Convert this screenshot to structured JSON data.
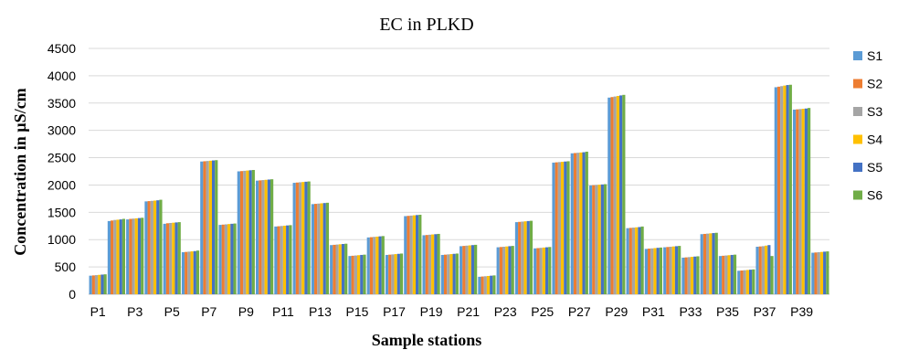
{
  "chart_data": {
    "type": "bar",
    "title": "EC in PLKD",
    "xlabel": "Sample stations",
    "ylabel": "Concentration in µS/cm",
    "ylim": [
      0,
      4500
    ],
    "ytick_step": 500,
    "grid": true,
    "legend_position": "right",
    "categories": [
      "P1",
      "P2",
      "P3",
      "P4",
      "P5",
      "P6",
      "P7",
      "P8",
      "P9",
      "P10",
      "P11",
      "P12",
      "P13",
      "P14",
      "P15",
      "P16",
      "P17",
      "P18",
      "P19",
      "P20",
      "P21",
      "P22",
      "P23",
      "P24",
      "P25",
      "P26",
      "P27",
      "P28",
      "P29",
      "P30",
      "P31",
      "P32",
      "P33",
      "P34",
      "P35",
      "P36",
      "P37",
      "P38",
      "P39",
      "P40"
    ],
    "visible_tick_labels": [
      "P1",
      "P3",
      "P5",
      "P7",
      "P9",
      "P11",
      "P13",
      "P15",
      "P17",
      "P19",
      "P21",
      "P23",
      "P25",
      "P27",
      "P29",
      "P31",
      "P33",
      "P35",
      "P37",
      "P39"
    ],
    "series": [
      {
        "name": "S1",
        "color": "#5b9bd5",
        "values": [
          340,
          1340,
          1370,
          1700,
          1290,
          770,
          2430,
          1270,
          2250,
          2080,
          1240,
          2040,
          1650,
          900,
          700,
          1040,
          720,
          1430,
          1080,
          720,
          880,
          320,
          860,
          1320,
          840,
          2410,
          2580,
          1990,
          3600,
          1210,
          830,
          860,
          670,
          1100,
          700,
          430,
          870,
          3790,
          3380,
          760
        ]
      },
      {
        "name": "S2",
        "color": "#ed7d31",
        "values": [
          345,
          1350,
          1380,
          1705,
          1300,
          775,
          2435,
          1275,
          2255,
          2085,
          1245,
          2045,
          1655,
          905,
          705,
          1045,
          725,
          1435,
          1085,
          725,
          885,
          325,
          865,
          1325,
          845,
          2415,
          2585,
          1995,
          3610,
          1215,
          835,
          865,
          675,
          1105,
          705,
          435,
          875,
          3800,
          3385,
          765
        ]
      },
      {
        "name": "S3",
        "color": "#a5a5a5",
        "values": [
          350,
          1360,
          1385,
          1710,
          1305,
          780,
          2440,
          1280,
          2260,
          2090,
          1250,
          2050,
          1660,
          910,
          710,
          1050,
          730,
          1440,
          1090,
          730,
          890,
          330,
          870,
          1330,
          850,
          2420,
          2590,
          2000,
          3620,
          1220,
          840,
          870,
          680,
          1110,
          710,
          440,
          880,
          3810,
          3390,
          770
        ]
      },
      {
        "name": "S4",
        "color": "#ffc000",
        "values": [
          355,
          1365,
          1390,
          1715,
          1310,
          785,
          2445,
          1285,
          2265,
          2095,
          1255,
          2055,
          1665,
          915,
          715,
          1055,
          735,
          1445,
          1095,
          735,
          895,
          335,
          875,
          1335,
          855,
          2425,
          2595,
          2005,
          3630,
          1225,
          845,
          875,
          685,
          1115,
          715,
          445,
          890,
          3820,
          3395,
          775
        ]
      },
      {
        "name": "S5",
        "color": "#4472c4",
        "values": [
          360,
          1370,
          1395,
          1720,
          1315,
          790,
          2450,
          1290,
          2270,
          2100,
          1260,
          2060,
          1670,
          920,
          720,
          1060,
          740,
          1450,
          1100,
          740,
          900,
          340,
          880,
          1340,
          860,
          2430,
          2600,
          2010,
          3640,
          1230,
          850,
          880,
          690,
          1120,
          720,
          450,
          900,
          3830,
          3400,
          780
        ]
      },
      {
        "name": "S6",
        "color": "#70ad47",
        "values": [
          365,
          1380,
          1400,
          1730,
          1320,
          800,
          2455,
          1295,
          2275,
          2105,
          1265,
          2065,
          1675,
          925,
          725,
          1065,
          745,
          1455,
          1105,
          745,
          905,
          345,
          885,
          1345,
          865,
          2435,
          2610,
          2015,
          3650,
          1240,
          855,
          885,
          695,
          1125,
          725,
          455,
          700,
          3835,
          3410,
          785
        ]
      }
    ]
  }
}
